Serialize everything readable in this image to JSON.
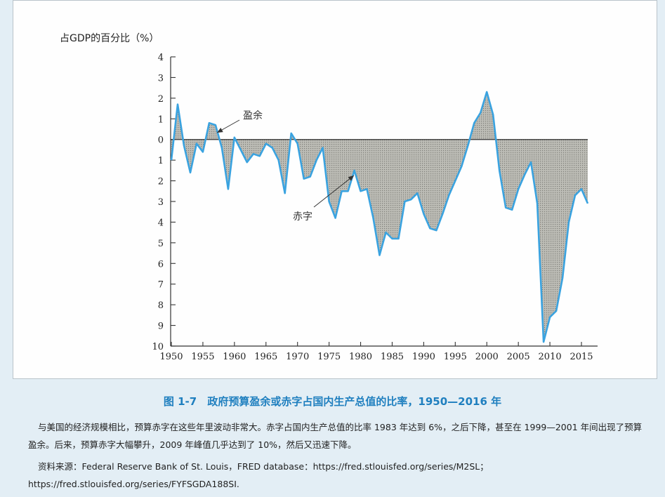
{
  "chart_data": {
    "type": "area",
    "ylabel": "占GDP的百分比（%）",
    "xlim": [
      1950,
      2016
    ],
    "ylim": [
      -10,
      4
    ],
    "y_tick_values": [
      4,
      3,
      2,
      1,
      0,
      -1,
      -2,
      -3,
      -4,
      -5,
      -6,
      -7,
      -8,
      -9,
      -10
    ],
    "y_tick_labels": [
      "4",
      "3",
      "2",
      "1",
      "0",
      "1",
      "2",
      "3",
      "4",
      "5",
      "6",
      "7",
      "8",
      "9",
      "10"
    ],
    "x_ticks": [
      1950,
      1955,
      1960,
      1965,
      1970,
      1975,
      1980,
      1985,
      1990,
      1995,
      2000,
      2005,
      2010,
      2015
    ],
    "grid": false,
    "line_color": "#3aa3e0",
    "fill_color": "#a6a6a0",
    "annotations": [
      {
        "text": "盈余",
        "x": 1957,
        "y": 0.4
      },
      {
        "text": "赤字",
        "x": 1979,
        "y": -1.5
      }
    ],
    "series": [
      {
        "x": [
          1950,
          1951,
          1952,
          1953,
          1954,
          1955,
          1956,
          1957,
          1958,
          1959,
          1960,
          1961,
          1962,
          1963,
          1964,
          1965,
          1966,
          1967,
          1968,
          1969,
          1970,
          1971,
          1972,
          1973,
          1974,
          1975,
          1976,
          1977,
          1978,
          1979,
          1980,
          1981,
          1982,
          1983,
          1984,
          1985,
          1986,
          1987,
          1988,
          1989,
          1990,
          1991,
          1992,
          1993,
          1994,
          1995,
          1996,
          1997,
          1998,
          1999,
          2000,
          2001,
          2002,
          2003,
          2004,
          2005,
          2006,
          2007,
          2008,
          2009,
          2010,
          2011,
          2012,
          2013,
          2014,
          2015,
          2016
        ],
        "y": [
          -1.0,
          1.7,
          -0.3,
          -1.6,
          -0.2,
          -0.6,
          0.8,
          0.7,
          -0.4,
          -2.4,
          0.1,
          -0.5,
          -1.1,
          -0.7,
          -0.8,
          -0.2,
          -0.4,
          -1.0,
          -2.6,
          0.3,
          -0.2,
          -1.9,
          -1.8,
          -1.0,
          -0.4,
          -3.0,
          -3.8,
          -2.5,
          -2.5,
          -1.5,
          -2.5,
          -2.4,
          -3.8,
          -5.6,
          -4.5,
          -4.8,
          -4.8,
          -3.0,
          -2.9,
          -2.6,
          -3.6,
          -4.3,
          -4.4,
          -3.6,
          -2.7,
          -2.0,
          -1.3,
          -0.3,
          0.8,
          1.3,
          2.3,
          1.2,
          -1.5,
          -3.3,
          -3.4,
          -2.4,
          -1.7,
          -1.1,
          -3.1,
          -9.8,
          -8.6,
          -8.3,
          -6.7,
          -4.0,
          -2.7,
          -2.4,
          -3.1
        ]
      }
    ]
  },
  "caption": {
    "number": "图 1-7",
    "title": "政府预算盈余或赤字占国内生产总值的比率，1950—2016 年"
  },
  "description": "与美国的经济规模相比，预算赤字在这些年里波动非常大。赤字占国内生产总值的比率 1983 年达到 6%，之后下降，甚至在 1999—2001 年间出现了预算盈余。后来，预算赤字大幅攀升，2009 年峰值几乎达到了 10%，然后又迅速下降。",
  "source": "资料来源：Federal Reserve Bank of St. Louis，FRED database：https://fred.stlouisfed.org/series/M2SL；https://fred.stlouisfed.org/series/FYFSGDA188SI."
}
